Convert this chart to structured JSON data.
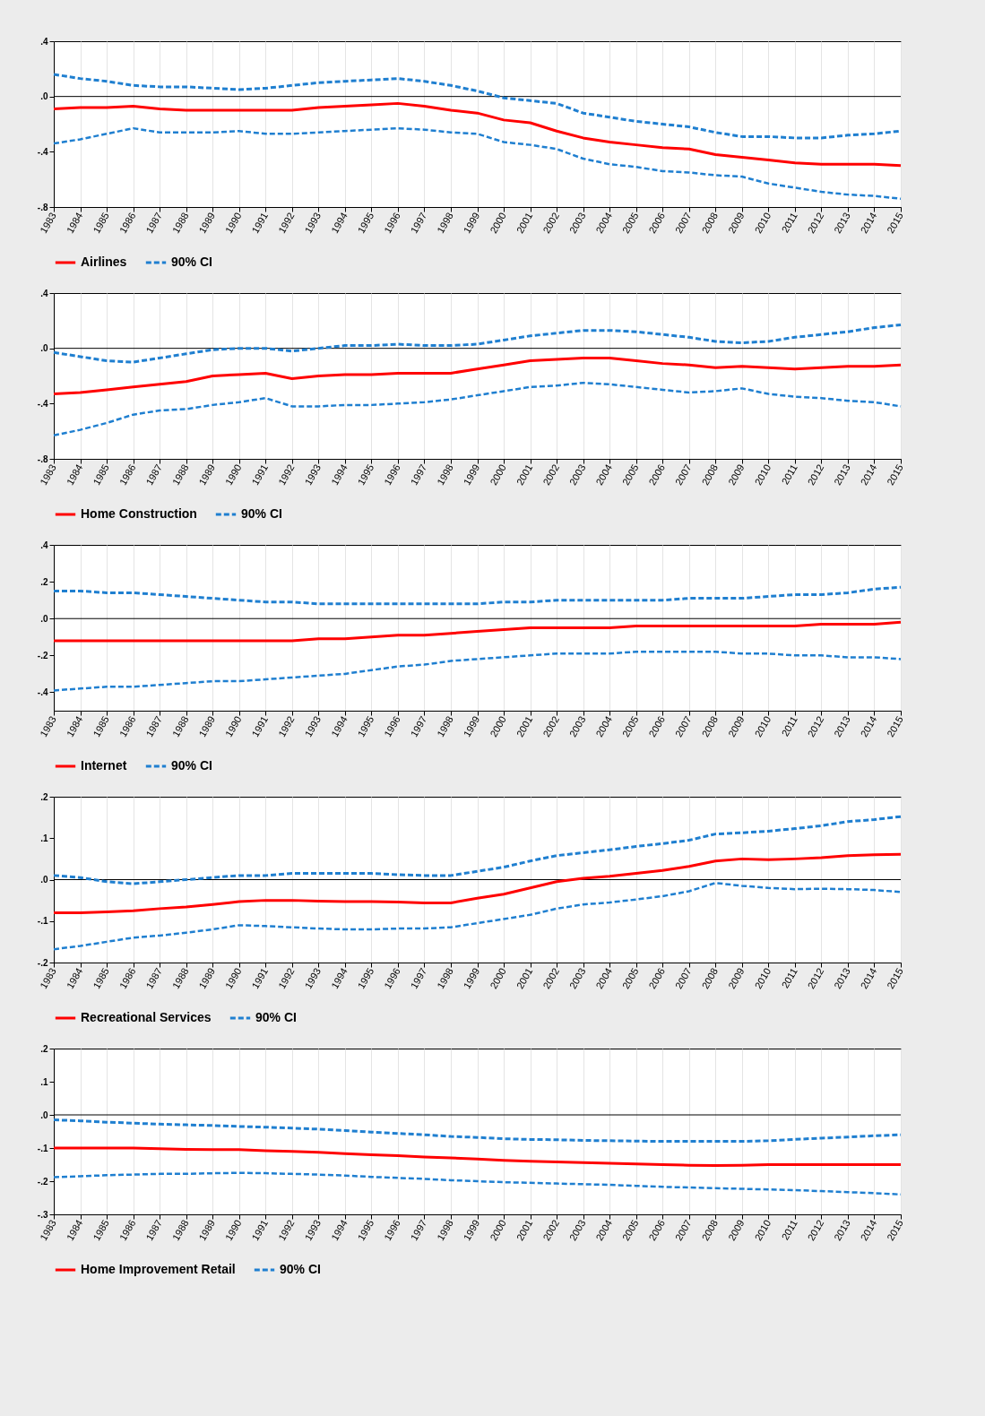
{
  "chart_data": [
    {
      "type": "line",
      "categories": [
        "1983",
        "1984",
        "1985",
        "1986",
        "1987",
        "1988",
        "1989",
        "1990",
        "1991",
        "1992",
        "1993",
        "1994",
        "1995",
        "1996",
        "1997",
        "1998",
        "1999",
        "2000",
        "2001",
        "2002",
        "2003",
        "2004",
        "2005",
        "2006",
        "2007",
        "2008",
        "2009",
        "2010",
        "2011",
        "2012",
        "2013",
        "2014",
        "2015"
      ],
      "ylim": [
        -0.8,
        0.4
      ],
      "yticks": [
        {
          "value": -0.8,
          "label": "-.8"
        },
        {
          "value": -0.4,
          "label": "-.4"
        },
        {
          "value": 0,
          "label": ".0"
        },
        {
          "value": 0.4,
          "label": ".4"
        }
      ],
      "grid": "x",
      "legend": "bottom",
      "ref_lines": [
        {
          "axis": "y",
          "value": 0,
          "color": "#000000"
        }
      ],
      "series": [
        {
          "name": "Airlines",
          "color": "#ff0000",
          "line_style": "solid",
          "values": [
            -0.09,
            -0.08,
            -0.08,
            -0.07,
            -0.09,
            -0.1,
            -0.1,
            -0.1,
            -0.1,
            -0.1,
            -0.08,
            -0.07,
            -0.06,
            -0.05,
            -0.07,
            -0.1,
            -0.12,
            -0.17,
            -0.19,
            -0.25,
            -0.3,
            -0.33,
            -0.35,
            -0.37,
            -0.38,
            -0.42,
            -0.44,
            -0.46,
            -0.48,
            -0.49,
            -0.49,
            -0.49,
            -0.5
          ]
        },
        {
          "name": "90% CI",
          "color": "#1f7fd0",
          "line_style": "dashed",
          "values": [
            0.16,
            0.13,
            0.11,
            0.08,
            0.07,
            0.07,
            0.06,
            0.05,
            0.06,
            0.08,
            0.1,
            0.11,
            0.12,
            0.13,
            0.11,
            0.08,
            0.04,
            -0.01,
            -0.03,
            -0.05,
            -0.12,
            -0.15,
            -0.18,
            -0.2,
            -0.22,
            -0.26,
            -0.29,
            -0.29,
            -0.3,
            -0.3,
            -0.28,
            -0.27,
            -0.25
          ]
        },
        {
          "color": "#1f7fd0",
          "line_style": "dashed",
          "values": [
            -0.34,
            -0.31,
            -0.27,
            -0.23,
            -0.26,
            -0.26,
            -0.26,
            -0.25,
            -0.27,
            -0.27,
            -0.26,
            -0.25,
            -0.24,
            -0.23,
            -0.24,
            -0.26,
            -0.27,
            -0.33,
            -0.35,
            -0.38,
            -0.45,
            -0.49,
            -0.51,
            -0.54,
            -0.55,
            -0.57,
            -0.58,
            -0.63,
            -0.66,
            -0.69,
            -0.71,
            -0.72,
            -0.74
          ]
        }
      ]
    },
    {
      "type": "line",
      "categories": [
        "1983",
        "1984",
        "1985",
        "1986",
        "1987",
        "1988",
        "1989",
        "1990",
        "1991",
        "1992",
        "1993",
        "1994",
        "1995",
        "1996",
        "1997",
        "1998",
        "1999",
        "2000",
        "2001",
        "2002",
        "2003",
        "2004",
        "2005",
        "2006",
        "2007",
        "2008",
        "2009",
        "2010",
        "2011",
        "2012",
        "2013",
        "2014",
        "2015"
      ],
      "ylim": [
        -0.8,
        0.4
      ],
      "yticks": [
        {
          "value": -0.8,
          "label": "-.8"
        },
        {
          "value": -0.4,
          "label": "-.4"
        },
        {
          "value": 0,
          "label": ".0"
        },
        {
          "value": 0.4,
          "label": ".4"
        }
      ],
      "grid": "x",
      "legend": "bottom",
      "ref_lines": [
        {
          "axis": "y",
          "value": 0,
          "color": "#000000"
        }
      ],
      "series": [
        {
          "name": "Home Construction",
          "color": "#ff0000",
          "line_style": "solid",
          "values": [
            -0.33,
            -0.32,
            -0.3,
            -0.28,
            -0.26,
            -0.24,
            -0.2,
            -0.19,
            -0.18,
            -0.22,
            -0.2,
            -0.19,
            -0.19,
            -0.18,
            -0.18,
            -0.18,
            -0.15,
            -0.12,
            -0.09,
            -0.08,
            -0.07,
            -0.07,
            -0.09,
            -0.11,
            -0.12,
            -0.14,
            -0.13,
            -0.14,
            -0.15,
            -0.14,
            -0.13,
            -0.13,
            -0.12
          ]
        },
        {
          "name": "90% CI",
          "color": "#1f7fd0",
          "line_style": "dashed",
          "values": [
            -0.03,
            -0.06,
            -0.09,
            -0.1,
            -0.07,
            -0.04,
            -0.01,
            0,
            0,
            -0.02,
            0,
            0.02,
            0.02,
            0.03,
            0.02,
            0.02,
            0.03,
            0.06,
            0.09,
            0.11,
            0.13,
            0.13,
            0.12,
            0.1,
            0.08,
            0.05,
            0.04,
            0.05,
            0.08,
            0.1,
            0.12,
            0.15,
            0.17
          ]
        },
        {
          "color": "#1f7fd0",
          "line_style": "dashed",
          "values": [
            -0.63,
            -0.59,
            -0.54,
            -0.48,
            -0.45,
            -0.44,
            -0.41,
            -0.39,
            -0.36,
            -0.42,
            -0.42,
            -0.41,
            -0.41,
            -0.4,
            -0.39,
            -0.37,
            -0.34,
            -0.31,
            -0.28,
            -0.27,
            -0.25,
            -0.26,
            -0.28,
            -0.3,
            -0.32,
            -0.31,
            -0.29,
            -0.33,
            -0.35,
            -0.36,
            -0.38,
            -0.39,
            -0.42
          ]
        }
      ]
    },
    {
      "type": "line",
      "categories": [
        "1983",
        "1984",
        "1985",
        "1986",
        "1987",
        "1988",
        "1989",
        "1990",
        "1991",
        "1992",
        "1993",
        "1994",
        "1995",
        "1996",
        "1997",
        "1998",
        "1999",
        "2000",
        "2001",
        "2002",
        "2003",
        "2004",
        "2005",
        "2006",
        "2007",
        "2008",
        "2009",
        "2010",
        "2011",
        "2012",
        "2013",
        "2014",
        "2015"
      ],
      "ylim": [
        -0.5,
        0.4
      ],
      "yticks": [
        {
          "value": -0.4,
          "label": "-.4"
        },
        {
          "value": -0.2,
          "label": "-.2"
        },
        {
          "value": 0,
          "label": ".0"
        },
        {
          "value": 0.2,
          "label": ".2"
        },
        {
          "value": 0.4,
          "label": ".4"
        }
      ],
      "grid": "x",
      "legend": "bottom",
      "ref_lines": [
        {
          "axis": "y",
          "value": 0,
          "color": "#000000"
        }
      ],
      "series": [
        {
          "name": "Internet",
          "color": "#ff0000",
          "line_style": "solid",
          "values": [
            -0.12,
            -0.12,
            -0.12,
            -0.12,
            -0.12,
            -0.12,
            -0.12,
            -0.12,
            -0.12,
            -0.12,
            -0.11,
            -0.11,
            -0.1,
            -0.09,
            -0.09,
            -0.08,
            -0.07,
            -0.06,
            -0.05,
            -0.05,
            -0.05,
            -0.05,
            -0.04,
            -0.04,
            -0.04,
            -0.04,
            -0.04,
            -0.04,
            -0.04,
            -0.03,
            -0.03,
            -0.03,
            -0.02
          ]
        },
        {
          "name": "90% CI",
          "color": "#1f7fd0",
          "line_style": "dashed",
          "values": [
            0.15,
            0.15,
            0.14,
            0.14,
            0.13,
            0.12,
            0.11,
            0.1,
            0.09,
            0.09,
            0.08,
            0.08,
            0.08,
            0.08,
            0.08,
            0.08,
            0.08,
            0.09,
            0.09,
            0.1,
            0.1,
            0.1,
            0.1,
            0.1,
            0.11,
            0.11,
            0.11,
            0.12,
            0.13,
            0.13,
            0.14,
            0.16,
            0.17
          ]
        },
        {
          "color": "#1f7fd0",
          "line_style": "dashed",
          "values": [
            -0.39,
            -0.38,
            -0.37,
            -0.37,
            -0.36,
            -0.35,
            -0.34,
            -0.34,
            -0.33,
            -0.32,
            -0.31,
            -0.3,
            -0.28,
            -0.26,
            -0.25,
            -0.23,
            -0.22,
            -0.21,
            -0.2,
            -0.19,
            -0.19,
            -0.19,
            -0.18,
            -0.18,
            -0.18,
            -0.18,
            -0.19,
            -0.19,
            -0.2,
            -0.2,
            -0.21,
            -0.21,
            -0.22
          ]
        }
      ]
    },
    {
      "type": "line",
      "categories": [
        "1983",
        "1984",
        "1985",
        "1986",
        "1987",
        "1988",
        "1989",
        "1990",
        "1991",
        "1992",
        "1993",
        "1994",
        "1995",
        "1996",
        "1997",
        "1998",
        "1999",
        "2000",
        "2001",
        "2002",
        "2003",
        "2004",
        "2005",
        "2006",
        "2007",
        "2008",
        "2009",
        "2010",
        "2011",
        "2012",
        "2013",
        "2014",
        "2015"
      ],
      "ylim": [
        -0.2,
        0.2
      ],
      "yticks": [
        {
          "value": -0.2,
          "label": "-.2"
        },
        {
          "value": -0.1,
          "label": "-.1"
        },
        {
          "value": 0,
          "label": ".0"
        },
        {
          "value": 0.1,
          "label": ".1"
        },
        {
          "value": 0.2,
          "label": ".2"
        }
      ],
      "grid": "x",
      "legend": "bottom",
      "ref_lines": [
        {
          "axis": "y",
          "value": 0,
          "color": "#000000"
        }
      ],
      "series": [
        {
          "name": "Recreational Services",
          "color": "#ff0000",
          "line_style": "solid",
          "values": [
            -0.08,
            -0.08,
            -0.078,
            -0.075,
            -0.07,
            -0.066,
            -0.06,
            -0.053,
            -0.05,
            -0.05,
            -0.052,
            -0.053,
            -0.053,
            -0.054,
            -0.056,
            -0.056,
            -0.045,
            -0.035,
            -0.02,
            -0.005,
            0.003,
            0.008,
            0.015,
            0.022,
            0.032,
            0.045,
            0.05,
            0.048,
            0.05,
            0.053,
            0.058,
            0.06,
            0.061
          ]
        },
        {
          "name": "90% CI",
          "color": "#1f7fd0",
          "line_style": "dashed",
          "values": [
            0.01,
            0.005,
            -0.005,
            -0.01,
            -0.005,
            0,
            0.005,
            0.01,
            0.01,
            0.015,
            0.015,
            0.015,
            0.015,
            0.012,
            0.01,
            0.01,
            0.02,
            0.03,
            0.045,
            0.058,
            0.065,
            0.072,
            0.08,
            0.087,
            0.095,
            0.11,
            0.113,
            0.117,
            0.123,
            0.13,
            0.14,
            0.145,
            0.152
          ]
        },
        {
          "color": "#1f7fd0",
          "line_style": "dashed",
          "values": [
            -0.168,
            -0.16,
            -0.15,
            -0.14,
            -0.135,
            -0.128,
            -0.12,
            -0.11,
            -0.112,
            -0.115,
            -0.118,
            -0.12,
            -0.12,
            -0.118,
            -0.118,
            -0.115,
            -0.105,
            -0.095,
            -0.085,
            -0.07,
            -0.06,
            -0.055,
            -0.048,
            -0.04,
            -0.028,
            -0.008,
            -0.015,
            -0.02,
            -0.023,
            -0.022,
            -0.023,
            -0.025,
            -0.03
          ]
        }
      ]
    },
    {
      "type": "line",
      "categories": [
        "1983",
        "1984",
        "1985",
        "1986",
        "1987",
        "1988",
        "1989",
        "1990",
        "1991",
        "1992",
        "1993",
        "1994",
        "1995",
        "1996",
        "1997",
        "1998",
        "1999",
        "2000",
        "2001",
        "2002",
        "2003",
        "2004",
        "2005",
        "2006",
        "2007",
        "2008",
        "2009",
        "2010",
        "2011",
        "2012",
        "2013",
        "2014",
        "2015"
      ],
      "ylim": [
        -0.3,
        0.2
      ],
      "yticks": [
        {
          "value": -0.3,
          "label": "-.3"
        },
        {
          "value": -0.2,
          "label": "-.2"
        },
        {
          "value": -0.1,
          "label": "-.1"
        },
        {
          "value": 0,
          "label": ".0"
        },
        {
          "value": 0.1,
          "label": ".1"
        },
        {
          "value": 0.2,
          "label": ".2"
        }
      ],
      "grid": "x",
      "legend": "bottom",
      "ref_lines": [
        {
          "axis": "y",
          "value": 0,
          "color": "#000000"
        }
      ],
      "series": [
        {
          "name": "Home Improvement Retail",
          "color": "#ff0000",
          "line_style": "solid",
          "values": [
            -0.1,
            -0.1,
            -0.1,
            -0.1,
            -0.102,
            -0.104,
            -0.105,
            -0.105,
            -0.108,
            -0.11,
            -0.113,
            -0.117,
            -0.12,
            -0.123,
            -0.127,
            -0.13,
            -0.133,
            -0.137,
            -0.14,
            -0.142,
            -0.144,
            -0.146,
            -0.148,
            -0.15,
            -0.152,
            -0.153,
            -0.152,
            -0.15,
            -0.15,
            -0.15,
            -0.15,
            -0.15,
            -0.15
          ]
        },
        {
          "name": "90% CI",
          "color": "#1f7fd0",
          "line_style": "dashed",
          "values": [
            -0.015,
            -0.018,
            -0.022,
            -0.025,
            -0.028,
            -0.03,
            -0.032,
            -0.035,
            -0.037,
            -0.04,
            -0.043,
            -0.047,
            -0.052,
            -0.056,
            -0.06,
            -0.065,
            -0.068,
            -0.072,
            -0.074,
            -0.075,
            -0.077,
            -0.078,
            -0.079,
            -0.08,
            -0.08,
            -0.08,
            -0.08,
            -0.078,
            -0.074,
            -0.07,
            -0.067,
            -0.063,
            -0.06
          ]
        },
        {
          "color": "#1f7fd0",
          "line_style": "dashed",
          "values": [
            -0.188,
            -0.185,
            -0.182,
            -0.18,
            -0.178,
            -0.178,
            -0.176,
            -0.175,
            -0.176,
            -0.178,
            -0.18,
            -0.183,
            -0.187,
            -0.19,
            -0.193,
            -0.197,
            -0.2,
            -0.203,
            -0.205,
            -0.207,
            -0.209,
            -0.211,
            -0.214,
            -0.217,
            -0.219,
            -0.221,
            -0.223,
            -0.225,
            -0.227,
            -0.23,
            -0.233,
            -0.236,
            -0.24
          ]
        }
      ]
    }
  ]
}
